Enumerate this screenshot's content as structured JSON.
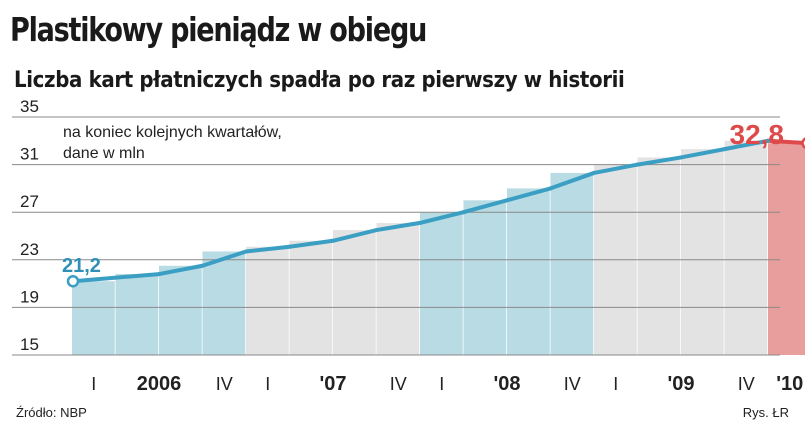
{
  "header": {
    "title": "Plastikowy pieniądz w obiegu",
    "subtitle": "Liczba kart płatniczych spadła po raz pierwszy w historii"
  },
  "note": {
    "line1": "na koniec kolejnych kwartałów,",
    "line2": "dane w mln"
  },
  "footer": {
    "source": "Źródło: NBP",
    "credit": "Rys. ŁR"
  },
  "colors": {
    "bar_blue": "#b8dbe4",
    "bar_gray": "#e3e3e3",
    "bar_red": "#e89e9c",
    "line": "#3b9fc4",
    "line_last": "#de4a4a",
    "gridline": "#8a8a8a"
  },
  "chart_data": {
    "type": "line",
    "x": [
      "I 2006",
      "II 2006",
      "III 2006",
      "IV 2006",
      "I 2007",
      "II 2007",
      "III 2007",
      "IV 2007",
      "I 2008",
      "II 2008",
      "III 2008",
      "IV 2008",
      "I 2009",
      "II 2009",
      "III 2009",
      "IV 2009",
      "I 2010"
    ],
    "series": [
      {
        "values": [
          21.2,
          21.8,
          22.5,
          23.7,
          24.1,
          24.6,
          25.5,
          26.1,
          27.0,
          28.0,
          29.0,
          30.3,
          31.0,
          31.6,
          32.3,
          33.0,
          32.8
        ]
      }
    ],
    "bar_fill_by_year": [
      "blue",
      "gray",
      "blue",
      "gray",
      "red"
    ],
    "annotations": {
      "first_value": "21,2",
      "last_value": "32,8"
    },
    "y_ticks": [
      "15",
      "19",
      "23",
      "27",
      "31",
      "35"
    ],
    "ylim": [
      15,
      35
    ],
    "grid": true,
    "x_tick_labels": [
      {
        "label": "I",
        "index": 0
      },
      {
        "label": "2006",
        "index": 1.5
      },
      {
        "label": "IV",
        "index": 3
      },
      {
        "label": "I",
        "index": 4
      },
      {
        "label": "'07",
        "index": 5.5
      },
      {
        "label": "IV",
        "index": 7
      },
      {
        "label": "I",
        "index": 8
      },
      {
        "label": "'08",
        "index": 9.5
      },
      {
        "label": "IV",
        "index": 11
      },
      {
        "label": "I",
        "index": 12
      },
      {
        "label": "'09",
        "index": 13.5
      },
      {
        "label": "IV",
        "index": 15
      },
      {
        "label": "'10",
        "index": 16
      }
    ],
    "bold_x_labels": [
      "2006",
      "'07",
      "'08",
      "'09",
      "'10"
    ]
  }
}
